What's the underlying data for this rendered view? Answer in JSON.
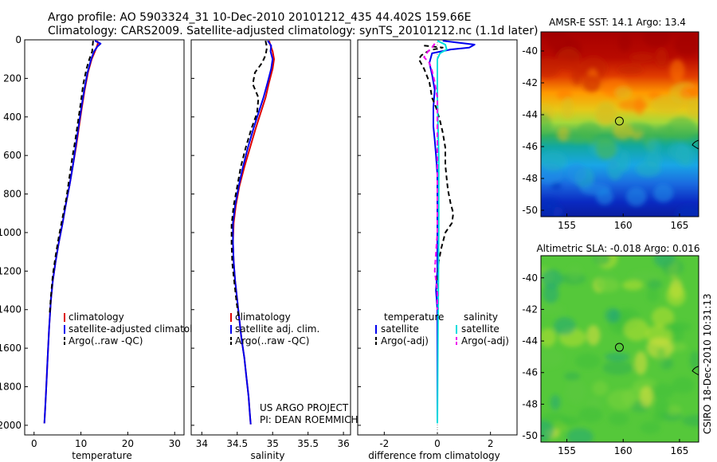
{
  "header": {
    "line1": "Argo profile: AO 5903324_31 10-Dec-2010 20101212_435 44.402S 159.66E",
    "line2": "Climatology: CARS2009. Satellite-adjusted climatology: synTS_20101212.nc (1.1d later)"
  },
  "credit": {
    "line1": "US ARGO PROJECT",
    "line2": "PI: DEAN ROEMMICH",
    "stamp": "CSIRO 18-Dec-2010 10:31:13"
  },
  "colors": {
    "climatology": "#dd0000",
    "satellite": "#0000ee",
    "argo": "#000000",
    "sal_satellite": "#00dddd",
    "sal_argo": "#ee00ee"
  },
  "chart_data": [
    {
      "type": "line",
      "id": "temperature",
      "xlabel": "temperature",
      "ylabel": "",
      "xlim": [
        -2,
        32
      ],
      "ylim": [
        2050,
        0
      ],
      "xticks": [
        "0",
        "10",
        "20",
        "30"
      ],
      "yticks": [
        "0",
        "200",
        "400",
        "600",
        "800",
        "1000",
        "1200",
        "1400",
        "1600",
        "1800",
        "2000"
      ],
      "legend": [
        "climatology",
        "satellite-adjusted climatology",
        "Argo(..raw -QC)"
      ],
      "series": [
        {
          "name": "climatology",
          "style": "solid",
          "color": "#dd0000",
          "points": [
            [
              13.5,
              5
            ],
            [
              13.6,
              20
            ],
            [
              13.4,
              35
            ],
            [
              13,
              60
            ],
            [
              12.3,
              100
            ],
            [
              11.5,
              170
            ],
            [
              10.8,
              260
            ],
            [
              10.2,
              350
            ],
            [
              9.6,
              450
            ],
            [
              9,
              550
            ],
            [
              8.3,
              650
            ],
            [
              7.6,
              750
            ],
            [
              6.8,
              850
            ],
            [
              6.1,
              950
            ],
            [
              5.3,
              1050
            ],
            [
              4.6,
              1150
            ],
            [
              4,
              1250
            ],
            [
              3.6,
              1350
            ],
            [
              3.2,
              1500
            ],
            [
              2.9,
              1650
            ],
            [
              2.6,
              1800
            ],
            [
              2.4,
              1900
            ],
            [
              2.2,
              1990
            ]
          ]
        },
        {
          "name": "satellite-adjusted climatology",
          "style": "solid",
          "color": "#0000ee",
          "points": [
            [
              13,
              5
            ],
            [
              14.2,
              20
            ],
            [
              13.5,
              35
            ],
            [
              12.8,
              60
            ],
            [
              12.2,
              100
            ],
            [
              11.4,
              170
            ],
            [
              10.7,
              260
            ],
            [
              10.1,
              350
            ],
            [
              9.5,
              450
            ],
            [
              8.9,
              550
            ],
            [
              8.3,
              650
            ],
            [
              7.6,
              750
            ],
            [
              6.8,
              850
            ],
            [
              6.1,
              950
            ],
            [
              5.3,
              1050
            ],
            [
              4.6,
              1150
            ],
            [
              4,
              1250
            ],
            [
              3.6,
              1350
            ],
            [
              3.2,
              1500
            ],
            [
              2.9,
              1650
            ],
            [
              2.6,
              1800
            ],
            [
              2.4,
              1900
            ],
            [
              2.2,
              1990
            ]
          ]
        },
        {
          "name": "Argo(..raw -QC)",
          "style": "dash",
          "color": "#000000",
          "points": [
            [
              12.6,
              5
            ],
            [
              12.5,
              30
            ],
            [
              12.4,
              60
            ],
            [
              11.8,
              100
            ],
            [
              11.2,
              150
            ],
            [
              10.5,
              230
            ],
            [
              10,
              320
            ],
            [
              9.4,
              420
            ],
            [
              8.8,
              520
            ],
            [
              8.1,
              620
            ],
            [
              7.5,
              720
            ],
            [
              6.9,
              820
            ],
            [
              6.1,
              920
            ],
            [
              5.3,
              1020
            ],
            [
              4.6,
              1120
            ],
            [
              4,
              1220
            ],
            [
              3.6,
              1330
            ],
            [
              3.3,
              1430
            ]
          ]
        }
      ]
    },
    {
      "type": "line",
      "id": "salinity",
      "xlabel": "salinity",
      "ylabel": "",
      "xlim": [
        33.85,
        36.1
      ],
      "ylim": [
        2050,
        0
      ],
      "xticks": [
        "34",
        "34.5",
        "35",
        "35.5",
        "36"
      ],
      "yticks": [],
      "legend": [
        "climatology",
        "satellite adj. clim.",
        "Argo(..raw -QC)"
      ],
      "series": [
        {
          "name": "climatology",
          "style": "solid",
          "color": "#dd0000",
          "points": [
            [
              34.95,
              5
            ],
            [
              34.97,
              30
            ],
            [
              35.0,
              60
            ],
            [
              35.02,
              100
            ],
            [
              35.0,
              150
            ],
            [
              34.95,
              220
            ],
            [
              34.9,
              300
            ],
            [
              34.83,
              380
            ],
            [
              34.76,
              460
            ],
            [
              34.68,
              560
            ],
            [
              34.6,
              660
            ],
            [
              34.53,
              760
            ],
            [
              34.48,
              860
            ],
            [
              34.45,
              950
            ],
            [
              34.44,
              1050
            ],
            [
              34.45,
              1150
            ],
            [
              34.47,
              1250
            ],
            [
              34.5,
              1350
            ],
            [
              34.53,
              1450
            ],
            [
              34.56,
              1550
            ],
            [
              34.6,
              1650
            ],
            [
              34.63,
              1750
            ],
            [
              34.66,
              1850
            ],
            [
              34.68,
              1950
            ],
            [
              34.69,
              1995
            ]
          ]
        },
        {
          "name": "satellite adj. clim.",
          "style": "solid",
          "color": "#0000ee",
          "points": [
            [
              34.93,
              5
            ],
            [
              34.98,
              30
            ],
            [
              34.97,
              60
            ],
            [
              35.0,
              100
            ],
            [
              34.98,
              150
            ],
            [
              34.93,
              220
            ],
            [
              34.87,
              300
            ],
            [
              34.8,
              380
            ],
            [
              34.73,
              460
            ],
            [
              34.65,
              560
            ],
            [
              34.58,
              660
            ],
            [
              34.52,
              760
            ],
            [
              34.47,
              860
            ],
            [
              34.44,
              950
            ],
            [
              34.44,
              1050
            ],
            [
              34.45,
              1150
            ],
            [
              34.47,
              1250
            ],
            [
              34.5,
              1350
            ],
            [
              34.53,
              1450
            ],
            [
              34.56,
              1550
            ],
            [
              34.6,
              1650
            ],
            [
              34.63,
              1750
            ],
            [
              34.66,
              1850
            ],
            [
              34.68,
              1950
            ],
            [
              34.69,
              1995
            ]
          ]
        },
        {
          "name": "Argo(..raw -QC)",
          "style": "dash",
          "color": "#000000",
          "points": [
            [
              34.9,
              5
            ],
            [
              34.92,
              40
            ],
            [
              34.9,
              80
            ],
            [
              34.85,
              120
            ],
            [
              34.75,
              170
            ],
            [
              34.72,
              230
            ],
            [
              34.8,
              300
            ],
            [
              34.78,
              380
            ],
            [
              34.7,
              460
            ],
            [
              34.62,
              560
            ],
            [
              34.55,
              660
            ],
            [
              34.5,
              760
            ],
            [
              34.45,
              860
            ],
            [
              34.42,
              960
            ],
            [
              34.42,
              1060
            ],
            [
              34.43,
              1160
            ],
            [
              34.46,
              1260
            ],
            [
              34.49,
              1360
            ],
            [
              34.52,
              1440
            ]
          ]
        }
      ]
    },
    {
      "type": "line",
      "id": "difference",
      "xlabel": "difference from climatology",
      "ylabel": "",
      "xlim": [
        -3,
        3
      ],
      "ylim": [
        2050,
        0
      ],
      "xticks": [
        "-2",
        "0",
        "2"
      ],
      "yticks": [],
      "legend_headers": [
        "temperature",
        "salinity"
      ],
      "legend": [
        "satellite",
        "Argo(-adj)",
        "satellite",
        "Argo(-adj)"
      ],
      "series": [
        {
          "name": "satellite",
          "group": "temperature",
          "style": "solid",
          "color": "#0000ee",
          "points": [
            [
              0.2,
              5
            ],
            [
              1.4,
              25
            ],
            [
              1.2,
              40
            ],
            [
              0.5,
              50
            ],
            [
              -0.2,
              70
            ],
            [
              -0.3,
              120
            ],
            [
              -0.2,
              180
            ],
            [
              -0.1,
              260
            ],
            [
              -0.15,
              350
            ],
            [
              -0.15,
              450
            ],
            [
              -0.1,
              520
            ],
            [
              -0.05,
              600
            ],
            [
              0,
              700
            ],
            [
              0,
              800
            ],
            [
              0,
              900
            ],
            [
              0,
              1000
            ],
            [
              0,
              1100
            ],
            [
              0,
              1200
            ],
            [
              -0.05,
              1300
            ],
            [
              0,
              1400
            ],
            [
              0,
              1500
            ],
            [
              0,
              1600
            ],
            [
              0,
              1700
            ],
            [
              0,
              1800
            ],
            [
              0,
              1900
            ],
            [
              0,
              1990
            ]
          ]
        },
        {
          "name": "Argo(-adj)",
          "group": "temperature",
          "style": "dash",
          "color": "#000000",
          "points": [
            [
              -0.5,
              30
            ],
            [
              0.2,
              40
            ],
            [
              -0.3,
              55
            ],
            [
              -0.6,
              80
            ],
            [
              -0.7,
              100
            ],
            [
              -0.5,
              150
            ],
            [
              -0.3,
              220
            ],
            [
              -0.2,
              300
            ],
            [
              -0.05,
              350
            ],
            [
              0.1,
              420
            ],
            [
              0.2,
              480
            ],
            [
              0.3,
              560
            ],
            [
              0.3,
              650
            ],
            [
              0.35,
              720
            ],
            [
              0.4,
              780
            ],
            [
              0.5,
              850
            ],
            [
              0.6,
              900
            ],
            [
              0.55,
              950
            ],
            [
              0.3,
              1000
            ],
            [
              0.15,
              1080
            ],
            [
              0.05,
              1150
            ],
            [
              0,
              1250
            ],
            [
              0,
              1320
            ]
          ]
        },
        {
          "name": "satellite",
          "group": "salinity",
          "style": "solid",
          "color": "#00dddd",
          "points": [
            [
              0,
              5
            ],
            [
              0.3,
              25
            ],
            [
              0.35,
              50
            ],
            [
              0.1,
              70
            ],
            [
              0,
              100
            ],
            [
              0,
              300
            ],
            [
              0.05,
              600
            ],
            [
              0.05,
              1000
            ],
            [
              0.03,
              1400
            ],
            [
              0,
              1990
            ]
          ]
        },
        {
          "name": "Argo(-adj)",
          "group": "salinity",
          "style": "dash",
          "color": "#ee00ee",
          "points": [
            [
              -0.1,
              20
            ],
            [
              -0.2,
              40
            ],
            [
              -0.35,
              60
            ],
            [
              -0.5,
              90
            ],
            [
              -0.3,
              120
            ],
            [
              -0.2,
              160
            ],
            [
              -0.1,
              220
            ],
            [
              0,
              300
            ],
            [
              0,
              500
            ],
            [
              0,
              800
            ],
            [
              0,
              1000
            ],
            [
              -0.05,
              1100
            ],
            [
              -0.1,
              1200
            ],
            [
              0,
              1300
            ],
            [
              0,
              1400
            ]
          ]
        }
      ]
    },
    {
      "type": "heatmap",
      "id": "sst-map",
      "title": "AMSR-E SST: 14.1 Argo: 13.4",
      "xlim": [
        152.7,
        166.7
      ],
      "ylim": [
        -50.4,
        -38.8
      ],
      "xticks": [
        "155",
        "160",
        "165"
      ],
      "yticks": [
        "-40",
        "-42",
        "-44",
        "-46",
        "-48",
        "-50"
      ],
      "marker": {
        "lon": 159.66,
        "lat": -44.402
      },
      "field": "sst"
    },
    {
      "type": "heatmap",
      "id": "sla-map",
      "title": "Altimetric SLA: -0.018 Argo: 0.016",
      "xlim": [
        152.7,
        166.7
      ],
      "ylim": [
        -50.4,
        -38.6
      ],
      "xticks": [
        "155",
        "160",
        "165"
      ],
      "yticks": [
        "-40",
        "-42",
        "-44",
        "-46",
        "-48",
        "-50"
      ],
      "marker": {
        "lon": 159.66,
        "lat": -44.402
      },
      "field": "sla"
    }
  ]
}
